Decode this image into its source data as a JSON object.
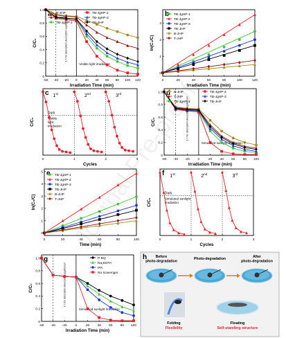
{
  "watermark": "Journal Pre-proof",
  "colors": {
    "black": "#000000",
    "red": "#e8202a",
    "green": "#3fc33a",
    "blue": "#1c36d8",
    "olive": "#a08a22",
    "maroon": "#8b1a1a",
    "magenta": "#e022d6",
    "water": "#4aa8d6"
  },
  "chart_data": [
    {
      "panel": "a",
      "type": "line",
      "xlabel": "Irradiation Time (min)",
      "ylabel": "C/C₀",
      "xlim": [
        -60,
        120
      ],
      "ylim": [
        0,
        1
      ],
      "xticks": [
        -60,
        -40,
        -20,
        0,
        20,
        40,
        60,
        80,
        100,
        120
      ],
      "yticks": [
        "0",
        "0.2",
        "0.4",
        "0.6",
        "0.8",
        "1.0"
      ],
      "annotations": [
        "1 h for absorption-desorption equilibrium",
        "Visible light irradiation"
      ],
      "x": [
        -60,
        -40,
        -20,
        0,
        20,
        40,
        60,
        80,
        100,
        120
      ],
      "series": [
        {
          "name": "B-JHP",
          "color": "olive",
          "marker": "circle",
          "values": [
            1,
            0.93,
            0.91,
            0.9,
            0.84,
            0.78,
            0.72,
            0.67,
            0.62,
            0.58
          ]
        },
        {
          "name": "T-JHP",
          "color": "maroon",
          "marker": "triangle",
          "values": [
            1,
            0.92,
            0.9,
            0.89,
            0.77,
            0.66,
            0.58,
            0.52,
            0.46,
            0.42
          ]
        },
        {
          "name": "TB-JgHP-1",
          "color": "green",
          "marker": "circle",
          "values": [
            1,
            0.88,
            0.86,
            0.85,
            0.6,
            0.42,
            0.3,
            0.22,
            0.16,
            0.12
          ]
        },
        {
          "name": "TB-JgHP-2",
          "color": "red",
          "marker": "square",
          "values": [
            1,
            0.87,
            0.85,
            0.83,
            0.52,
            0.3,
            0.17,
            0.09,
            0.05,
            0.03
          ]
        },
        {
          "name": "TB-JgHP-3",
          "color": "blue",
          "marker": "triangle",
          "values": [
            1,
            0.89,
            0.87,
            0.86,
            0.64,
            0.47,
            0.35,
            0.27,
            0.21,
            0.17
          ]
        },
        {
          "name": "TB-JHP",
          "color": "black",
          "marker": "diamond",
          "values": [
            1,
            0.89,
            0.87,
            0.86,
            0.68,
            0.52,
            0.41,
            0.33,
            0.27,
            0.22
          ]
        }
      ]
    },
    {
      "panel": "b",
      "type": "line",
      "xlabel": "Irradiation Time (min)",
      "ylabel": "ln(C₀/C)",
      "xlim": [
        0,
        120
      ],
      "ylim": [
        -0.2,
        3.8
      ],
      "xticks": [
        0,
        20,
        40,
        60,
        80,
        100,
        120
      ],
      "yticks": [
        "0",
        "1",
        "2",
        "3"
      ],
      "x": [
        0,
        20,
        40,
        60,
        80,
        100,
        120
      ],
      "series": [
        {
          "name": "TB-JgHP-1",
          "color": "green",
          "values": [
            0,
            0.35,
            0.7,
            1.1,
            1.55,
            2.0,
            2.5
          ]
        },
        {
          "name": "TB-JgHP-2",
          "color": "red",
          "values": [
            0,
            0.5,
            1.1,
            1.65,
            2.3,
            2.9,
            3.5
          ]
        },
        {
          "name": "TB-JgHP-3",
          "color": "blue",
          "values": [
            0,
            0.3,
            0.6,
            0.95,
            1.3,
            1.65,
            2.0
          ]
        },
        {
          "name": "TB-JHP",
          "color": "black",
          "values": [
            0,
            0.25,
            0.5,
            0.8,
            1.05,
            1.35,
            1.65
          ]
        },
        {
          "name": "B-JHP",
          "color": "olive",
          "values": [
            0,
            0.08,
            0.17,
            0.25,
            0.33,
            0.42,
            0.5
          ]
        },
        {
          "name": "T-JHP",
          "color": "maroon",
          "values": [
            0,
            0.12,
            0.25,
            0.38,
            0.5,
            0.62,
            0.75
          ]
        }
      ]
    },
    {
      "panel": "c",
      "type": "line",
      "xlabel": "Cycles",
      "ylabel": "C/C₀",
      "xlim": [
        0,
        3
      ],
      "ylim": [
        0,
        1.05
      ],
      "xticks": [
        0,
        1,
        2,
        3
      ],
      "cycle_labels": [
        "1",
        "2",
        "3"
      ],
      "cycle_sup": [
        "st",
        "nd",
        "rd"
      ],
      "annotations": [
        "Dark",
        "Visible light irradiation"
      ],
      "series": [
        {
          "name": "TB-JgHP-2",
          "color": "red",
          "x": [
            0,
            0.1,
            0.2,
            0.28,
            0.36,
            0.44,
            0.52,
            0.62,
            0.74,
            0.87,
            1.0,
            1.1,
            1.2,
            1.28,
            1.36,
            1.44,
            1.52,
            1.62,
            1.74,
            1.87,
            2.0,
            2.1,
            2.2,
            2.28,
            2.36,
            2.44,
            2.52,
            2.62,
            2.74,
            2.87
          ],
          "values": [
            1,
            0.84,
            0.6,
            0.4,
            0.26,
            0.15,
            0.09,
            0.06,
            0.05,
            0.04,
            1,
            0.85,
            0.62,
            0.42,
            0.28,
            0.17,
            0.1,
            0.07,
            0.06,
            0.05,
            1,
            0.85,
            0.63,
            0.44,
            0.3,
            0.19,
            0.12,
            0.08,
            0.07,
            0.06
          ]
        }
      ]
    },
    {
      "panel": "d",
      "type": "line",
      "xlabel": "Irradiation Time (min)",
      "ylabel": "C/C₀",
      "xlim": [
        -60,
        100
      ],
      "ylim": [
        0,
        1.05
      ],
      "xticks": [
        -60,
        -40,
        -20,
        0,
        20,
        40,
        60,
        80,
        100
      ],
      "yticks": [
        "0",
        "0.2",
        "0.4",
        "0.6",
        "0.8",
        "1.0"
      ],
      "annotations": [
        "1 h for absorption-desorption equilibrium",
        "Simulated sunlight irradiation"
      ],
      "x": [
        -60,
        -40,
        -20,
        0,
        20,
        40,
        60,
        80,
        100
      ],
      "series": [
        {
          "name": "B-JHP",
          "color": "olive",
          "values": [
            1,
            0.76,
            0.74,
            0.73,
            0.55,
            0.38,
            0.27,
            0.2,
            0.16
          ]
        },
        {
          "name": "T-JHP",
          "color": "maroon",
          "values": [
            1,
            0.75,
            0.73,
            0.72,
            0.48,
            0.3,
            0.2,
            0.14,
            0.11
          ]
        },
        {
          "name": "TB-JgHP-1",
          "color": "green",
          "values": [
            1,
            0.72,
            0.7,
            0.69,
            0.38,
            0.2,
            0.11,
            0.06,
            0.04
          ]
        },
        {
          "name": "TB-JgHP-2",
          "color": "red",
          "values": [
            1,
            0.72,
            0.7,
            0.68,
            0.2,
            0.06,
            0.02,
            0.01,
            0.01
          ]
        },
        {
          "name": "TB-JgHP-3",
          "color": "blue",
          "values": [
            1,
            0.73,
            0.71,
            0.7,
            0.42,
            0.25,
            0.15,
            0.09,
            0.06
          ]
        },
        {
          "name": "TB-JHP",
          "color": "black",
          "values": [
            1,
            0.74,
            0.72,
            0.71,
            0.45,
            0.28,
            0.18,
            0.12,
            0.09
          ]
        }
      ]
    },
    {
      "panel": "e",
      "type": "line",
      "xlabel": "Time (min)",
      "ylabel": "ln(C₀/C)",
      "xlim": [
        0,
        100
      ],
      "ylim": [
        -0.2,
        5.2
      ],
      "xticks": [
        0,
        20,
        40,
        60,
        80,
        100
      ],
      "yticks": [
        "0",
        "1",
        "2",
        "3",
        "4",
        "5"
      ],
      "x": [
        0,
        20,
        40,
        60,
        80,
        100
      ],
      "series": [
        {
          "name": "TB-JgHP-1",
          "color": "green",
          "values": [
            0,
            0.6,
            1.2,
            1.75,
            2.35,
            2.95
          ]
        },
        {
          "name": "TB-JgHP-2",
          "color": "red",
          "values": [
            0,
            1.0,
            1.95,
            2.9,
            3.9,
            4.85
          ]
        },
        {
          "name": "TB-JgHP-3",
          "color": "blue",
          "values": [
            0,
            0.45,
            0.9,
            1.35,
            1.8,
            2.25
          ]
        },
        {
          "name": "TB-JHP",
          "color": "black",
          "values": [
            0,
            0.37,
            0.75,
            1.1,
            1.5,
            1.85
          ]
        },
        {
          "name": "B-JHP",
          "color": "olive",
          "values": [
            0,
            0.2,
            0.4,
            0.6,
            0.8,
            1.0
          ]
        },
        {
          "name": "T-JHP",
          "color": "maroon",
          "values": [
            0,
            0.25,
            0.5,
            0.75,
            1.0,
            1.25
          ]
        }
      ]
    },
    {
      "panel": "f",
      "type": "line",
      "xlabel": "Cycles",
      "ylabel": "C/C₀",
      "xlim": [
        0,
        3
      ],
      "ylim": [
        0,
        1.05
      ],
      "xticks": [
        0,
        1,
        2,
        3
      ],
      "cycle_labels": [
        "1",
        "2",
        "3"
      ],
      "cycle_sup": [
        "st",
        "nd",
        "rd"
      ],
      "annotations": [
        "Dark",
        "Simulated sunlight irradiation"
      ],
      "series": [
        {
          "name": "TB-JgHP-2",
          "color": "red",
          "x": [
            0,
            0.12,
            0.22,
            0.32,
            0.44,
            0.6,
            0.78,
            1.0,
            1.12,
            1.22,
            1.32,
            1.44,
            1.6,
            1.78,
            2.0,
            2.12,
            2.22,
            2.32,
            2.44,
            2.6,
            2.78
          ],
          "values": [
            1,
            0.68,
            0.4,
            0.2,
            0.09,
            0.04,
            0.02,
            1,
            0.7,
            0.42,
            0.22,
            0.1,
            0.05,
            0.03,
            1,
            0.71,
            0.44,
            0.24,
            0.12,
            0.06,
            0.04
          ]
        }
      ]
    },
    {
      "panel": "g",
      "type": "line",
      "xlabel": "Irradiation Time (min)",
      "ylabel": "C/C₀",
      "xlim": [
        -60,
        100
      ],
      "ylim": [
        0,
        1.05
      ],
      "xticks": [
        -60,
        -40,
        -20,
        0,
        20,
        40,
        60,
        80,
        100
      ],
      "yticks": [
        "0",
        "0.2",
        "0.4",
        "0.6",
        "0.8",
        "1.0"
      ],
      "annotations": [
        "1 h for absorption-desorption equilibrium",
        "Simulated sunlight irradiation"
      ],
      "x": [
        -60,
        -40,
        -20,
        0,
        20,
        40,
        60,
        80,
        100
      ],
      "series": [
        {
          "name": "P-BQ",
          "color": "black",
          "values": [
            1,
            0.73,
            0.71,
            0.7,
            0.6,
            0.49,
            0.4,
            0.33,
            0.26
          ]
        },
        {
          "name": "Na₂EDTA",
          "color": "green",
          "values": [
            1,
            0.73,
            0.71,
            0.7,
            0.56,
            0.43,
            0.32,
            0.23,
            0.17
          ]
        },
        {
          "name": "IPA",
          "color": "blue",
          "values": [
            1,
            0.73,
            0.71,
            0.7,
            0.5,
            0.34,
            0.22,
            0.14,
            0.09
          ]
        },
        {
          "name": "No scavenger",
          "color": "red",
          "values": [
            1,
            0.73,
            0.71,
            0.7,
            0.2,
            0.06,
            0.02,
            0.01,
            0.01
          ]
        }
      ]
    }
  ],
  "panel_h": {
    "letter": "h",
    "captions": [
      "Before photo-degradation",
      "Photo-degradation",
      "After photo-degradation"
    ],
    "bottom_labels": [
      {
        "title": "Folding",
        "subtitle": "Flexibility"
      },
      {
        "title": "Floating",
        "subtitle": "Self-standing structure"
      }
    ]
  }
}
